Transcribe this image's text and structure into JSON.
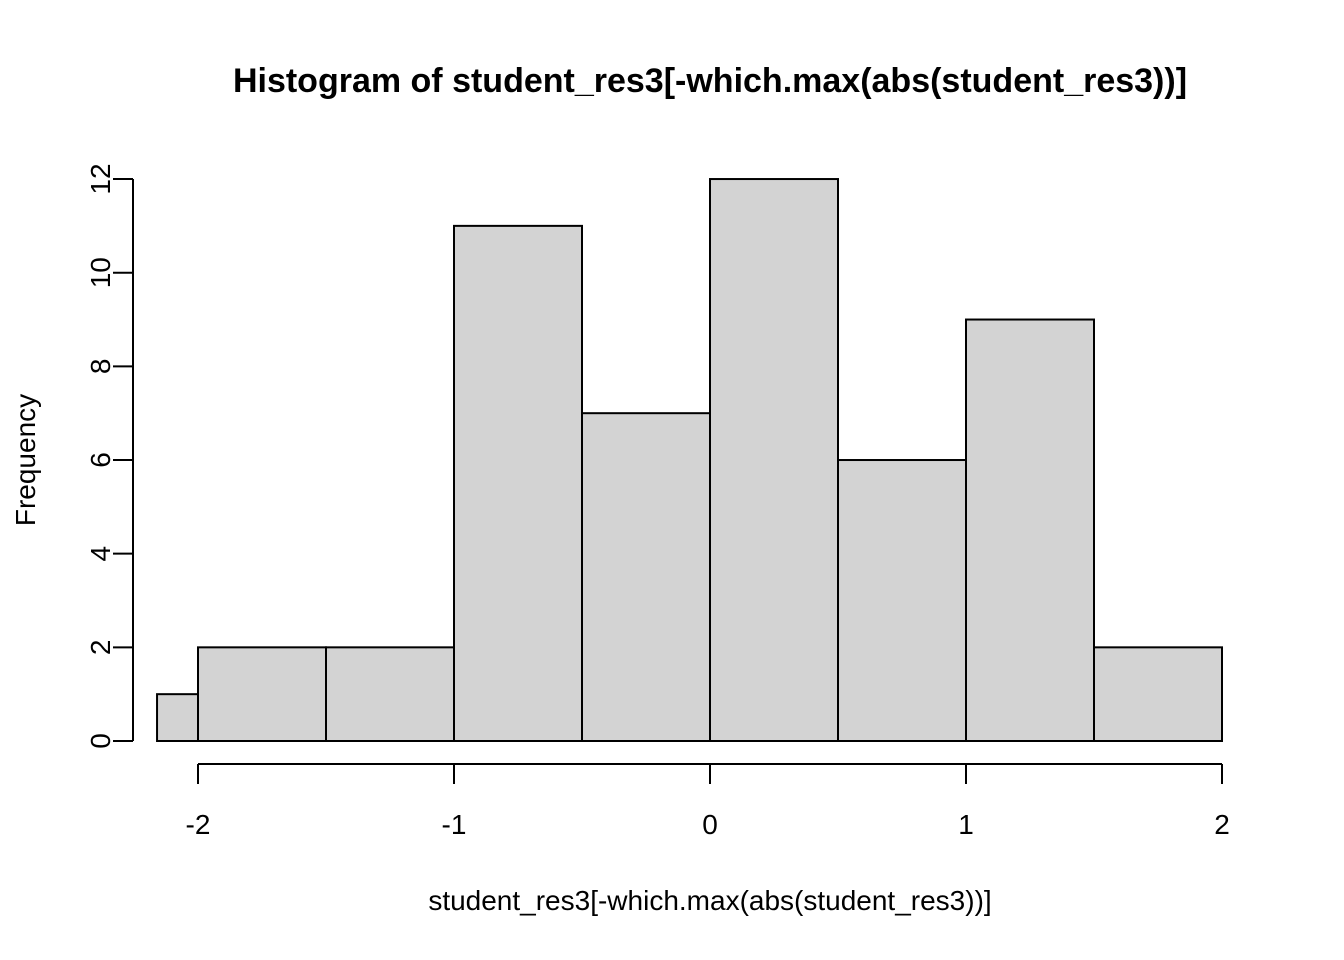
{
  "chart_data": {
    "type": "bar",
    "title": "Histogram of student_res3[-which.max(abs(student_res3))]",
    "xlabel": "student_res3[-which.max(abs(student_res3))]",
    "ylabel": "Frequency",
    "bins": [
      {
        "start": -2.16,
        "end": -2.0,
        "count": 1
      },
      {
        "start": -2.0,
        "end": -1.5,
        "count": 2
      },
      {
        "start": -1.5,
        "end": -1.0,
        "count": 2
      },
      {
        "start": -1.0,
        "end": -0.5,
        "count": 11
      },
      {
        "start": -0.5,
        "end": 0.0,
        "count": 7
      },
      {
        "start": 0.0,
        "end": 0.5,
        "count": 12
      },
      {
        "start": 0.5,
        "end": 1.0,
        "count": 6
      },
      {
        "start": 1.0,
        "end": 1.5,
        "count": 9
      },
      {
        "start": 1.5,
        "end": 2.0,
        "count": 2
      }
    ],
    "xticks": [
      -2,
      -1,
      0,
      1,
      2
    ],
    "yticks": [
      0,
      2,
      4,
      6,
      8,
      10,
      12
    ],
    "xlim": [
      -2.16,
      2.0
    ],
    "ylim": [
      0,
      12
    ],
    "bar_color": "#d3d3d3",
    "grid": false,
    "legend": "none"
  }
}
